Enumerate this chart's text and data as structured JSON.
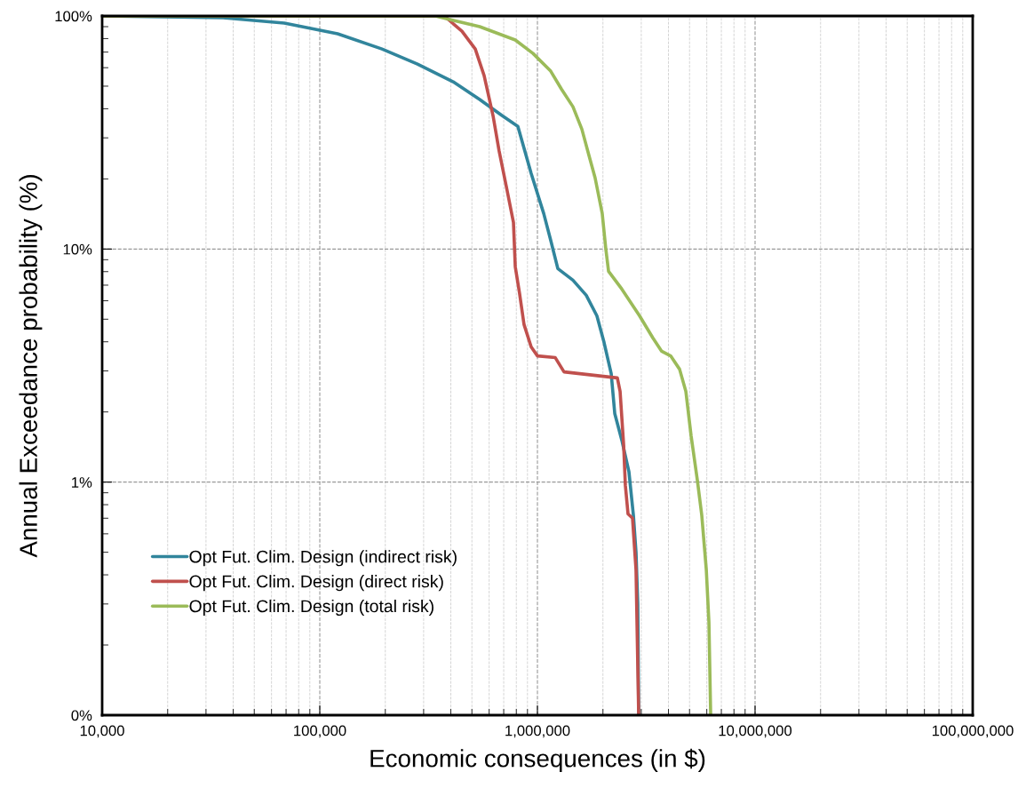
{
  "chart_data": {
    "type": "line",
    "xlabel": "Economic consequences (in $)",
    "ylabel": "Annual Exceedance probability (%)",
    "log": "xy",
    "grid": true,
    "legend": "bottom left",
    "marker": "none",
    "line_style": "solid",
    "xlim": [
      10000,
      100000000
    ],
    "xticks": [
      {
        "value": 10000,
        "label": "10,000"
      },
      {
        "value": 100000,
        "label": "100,000"
      },
      {
        "value": 1000000,
        "label": "1,000,000"
      },
      {
        "value": 10000000,
        "label": "10,000,000"
      },
      {
        "value": 100000000,
        "label": "100,000,000"
      }
    ],
    "ylim": [
      0.1,
      100
    ],
    "yticks": [
      {
        "value": 0.1,
        "label": "0%"
      },
      {
        "value": 1,
        "label": "1%"
      },
      {
        "value": 10,
        "label": "10%"
      },
      {
        "value": 100,
        "label": "100%"
      }
    ],
    "series": [
      {
        "name": "Opt Fut. Clim. Design (indirect risk)",
        "color": "#31859c",
        "x": [
          10000,
          36000,
          68700,
          120700,
          193000,
          281000,
          410000,
          543000,
          687000,
          813000,
          936000,
          1069000,
          1151000,
          1241000,
          1456000,
          1676000,
          1876000,
          2024000,
          2183000,
          2266000,
          2443000,
          2632000,
          2761000,
          2838000,
          2891000,
          2919000
        ],
        "values": [
          100,
          98.3,
          93.2,
          83.9,
          72.2,
          62.2,
          52.2,
          43.8,
          37.4,
          33.6,
          21.1,
          14.2,
          10.9,
          8.24,
          7.35,
          6.33,
          5.17,
          3.97,
          2.92,
          1.97,
          1.51,
          1.11,
          0.72,
          0.5,
          0.3,
          0.1
        ]
      },
      {
        "name": "Opt Fut. Clim. Design (direct risk)",
        "color": "#c0504d",
        "x": [
          10000,
          373000,
          450000,
          518000,
          569000,
          625000,
          667000,
          720000,
          776000,
          791000,
          828000,
          868000,
          936000,
          1000000,
          1208000,
          1325000,
          2329000,
          2398000,
          2489000,
          2535000,
          2608000,
          2735000,
          2838000,
          2919000
        ],
        "values": [
          100,
          100,
          86.1,
          72.2,
          55.5,
          37.4,
          26.3,
          18.5,
          13.0,
          8.4,
          6.44,
          4.74,
          3.8,
          3.48,
          3.42,
          2.97,
          2.8,
          2.45,
          1.45,
          0.97,
          0.73,
          0.7,
          0.42,
          0.1
        ]
      },
      {
        "name": "Opt Fut. Clim. Design (total risk)",
        "color": "#9bbb59",
        "x": [
          10000,
          340000,
          543000,
          791000,
          954000,
          1151000,
          1289000,
          1456000,
          1600000,
          1725000,
          1841000,
          1985000,
          2062000,
          2122000,
          2443000,
          2946000,
          3394000,
          3724000,
          4093000,
          4500000,
          4808000,
          5083000,
          5430000,
          5690000,
          5970000,
          6138000,
          6252000
        ],
        "values": [
          100,
          100,
          90.0,
          78.9,
          69.1,
          58.0,
          48.6,
          40.8,
          32.7,
          25.2,
          20.2,
          14.2,
          10,
          8.03,
          6.73,
          5.17,
          4.15,
          3.64,
          3.48,
          3.05,
          2.45,
          1.58,
          1.02,
          0.72,
          0.42,
          0.25,
          0.1
        ]
      }
    ]
  }
}
